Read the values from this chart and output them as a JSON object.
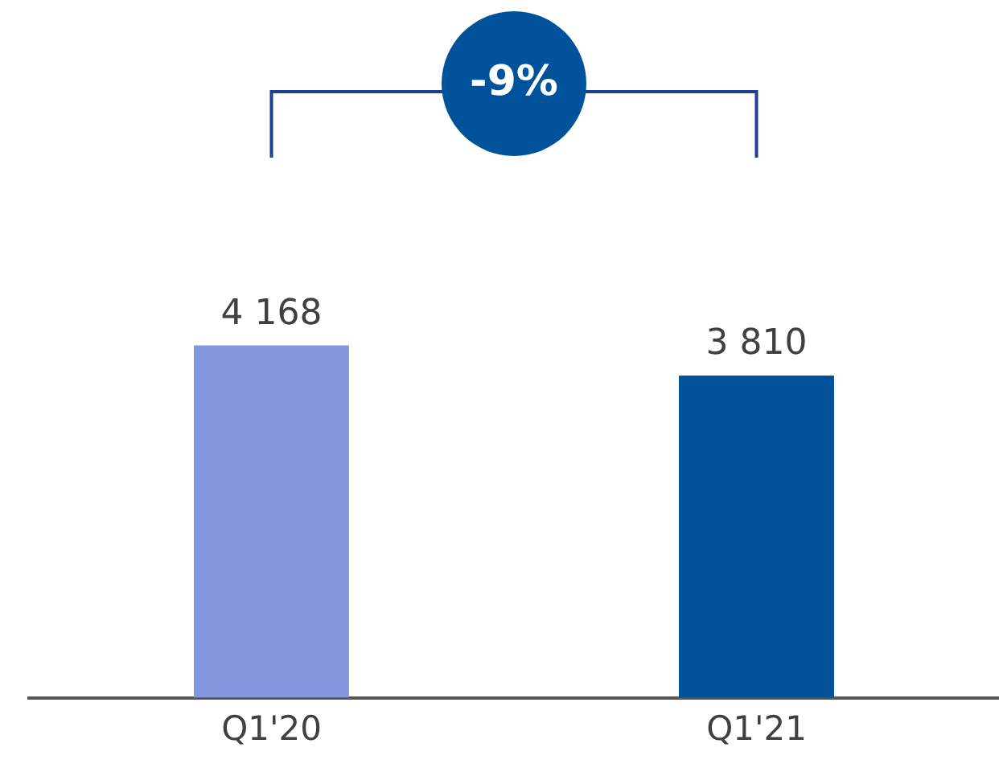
{
  "chart_data": {
    "type": "bar",
    "categories": [
      "Q1'20",
      "Q1'21"
    ],
    "values": [
      4168,
      3810
    ],
    "colors": [
      "#8496dd",
      "#00529b"
    ],
    "value_labels": [
      "4 168",
      "3 810"
    ],
    "annotations": [
      "-9%"
    ],
    "relative": false,
    "grid": false,
    "legend": false
  }
}
